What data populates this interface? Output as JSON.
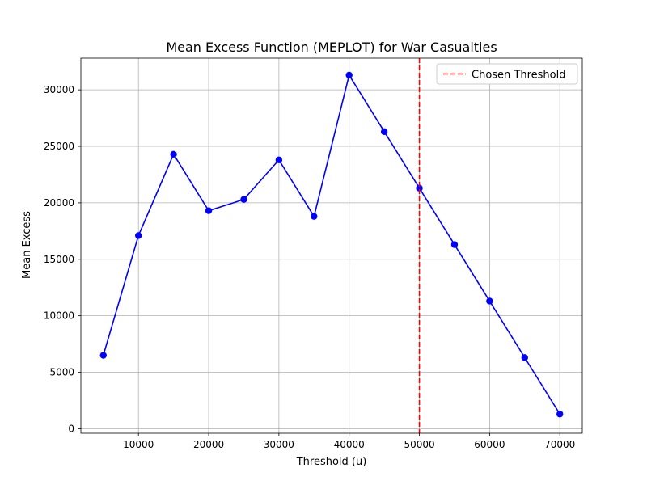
{
  "chart_data": {
    "type": "line",
    "title": "Mean Excess Function (MEPLOT) for War Casualties",
    "xlabel": "Threshold (u)",
    "ylabel": "Mean Excess",
    "xlim": [
      1800,
      73200
    ],
    "ylim": [
      -400,
      32800
    ],
    "x_ticks": [
      10000,
      20000,
      30000,
      40000,
      50000,
      60000,
      70000
    ],
    "y_ticks": [
      0,
      5000,
      10000,
      15000,
      20000,
      25000,
      30000
    ],
    "grid": true,
    "legend_position": "top-right",
    "series": [
      {
        "name": "",
        "color": "#0000ff",
        "marker": "circle",
        "x": [
          5000,
          10000,
          15000,
          20000,
          25000,
          30000,
          35000,
          40000,
          45000,
          50000,
          55000,
          60000,
          65000,
          70000
        ],
        "y": [
          6500,
          17100,
          24300,
          19300,
          20300,
          23800,
          18800,
          31300,
          26300,
          21300,
          16300,
          11300,
          6300,
          1300
        ]
      }
    ],
    "threshold_line": {
      "x": 50000,
      "label": "Chosen Threshold",
      "color": "#ff0000",
      "style": "dashed"
    }
  }
}
